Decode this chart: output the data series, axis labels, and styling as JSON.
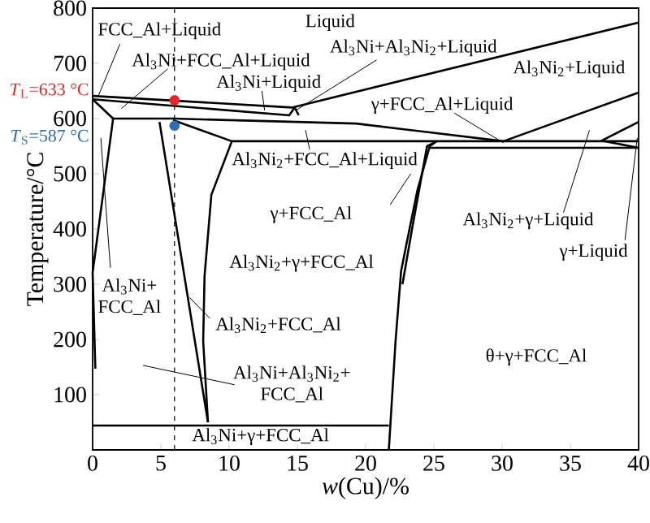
{
  "chart_data": {
    "type": "line",
    "xlabel": "*w*(Cu)/%",
    "ylabel": "Temperature/°C",
    "xlim": [
      0,
      40
    ],
    "ylim": [
      0,
      800
    ],
    "xticks": [
      0,
      5,
      10,
      15,
      20,
      25,
      30,
      35,
      40
    ],
    "yticks": [
      100,
      200,
      300,
      400,
      500,
      600,
      700,
      800
    ],
    "ref_lines": [
      {
        "axis": "x",
        "value": 6,
        "line_style": "dashed",
        "color": "#000000"
      }
    ],
    "series": [
      {
        "color": "#000000",
        "x": [
          0,
          14.6,
          40
        ],
        "values": [
          641,
          620,
          774
        ]
      },
      {
        "color": "#000000",
        "x": [
          0,
          14.4,
          14.8,
          15.1
        ],
        "values": [
          635,
          606,
          620,
          606
        ]
      },
      {
        "color": "#000000",
        "x": [
          0,
          1.5,
          5.9,
          19.3,
          30.1,
          40
        ],
        "values": [
          635,
          600,
          600,
          591,
          559,
          647
        ]
      },
      {
        "color": "#000000",
        "x": [
          5.9,
          10.2,
          40
        ],
        "values": [
          597,
          559,
          559
        ]
      },
      {
        "color": "#000000",
        "x": [
          24.6,
          40
        ],
        "values": [
          547,
          547
        ]
      },
      {
        "color": "#000000",
        "x": [
          1.5,
          0,
          0.2
        ],
        "values": [
          600,
          321,
          147
        ]
      },
      {
        "color": "#000000",
        "x": [
          4.9,
          8.45
        ],
        "values": [
          594,
          50
        ]
      },
      {
        "color": "#000000",
        "x": [
          10.2,
          8.7,
          8.2,
          8.1,
          8.45
        ],
        "values": [
          559,
          462,
          315,
          197,
          50
        ]
      },
      {
        "color": "#000000",
        "x": [
          0,
          21.7
        ],
        "values": [
          44,
          44
        ]
      },
      {
        "color": "#000000",
        "x": [
          21.7,
          22.2,
          22.6,
          23.0,
          23.8,
          24.7,
          25.2
        ],
        "values": [
          0,
          200,
          324,
          374,
          471,
          550,
          559
        ]
      },
      {
        "color": "#000000",
        "x": [
          22.7,
          23.4,
          24.5,
          25.0
        ],
        "values": [
          300,
          400,
          550,
          556
        ]
      },
      {
        "color": "#000000",
        "x": [
          40,
          37.3,
          40
        ],
        "values": [
          547,
          560,
          594
        ]
      },
      {
        "type": "scatter",
        "name": "*T*$_{L}$=633 °C",
        "color": "#e8262a",
        "x": [
          6
        ],
        "values": [
          633
        ]
      },
      {
        "type": "scatter",
        "name": "*T*$_{S}$=587 °C",
        "color": "#2e6db4",
        "x": [
          6
        ],
        "values": [
          587
        ]
      }
    ],
    "annotations": [
      {
        "text": "FCC_Al+Liquid",
        "x": 0.4,
        "y": 640
      },
      {
        "text": "Al$_{3}$Ni+FCC_Al+Liquid",
        "x": 2.1,
        "y": 618
      },
      {
        "text": "Al$_{3}$Ni+Liquid",
        "x": 12.6,
        "y": 615
      },
      "Liquid",
      {
        "text": "Al$_{3}$Ni+Al$_{3}$Ni$_{2}$+Liquid",
        "x": 14.9,
        "y": 615
      },
      "Al$_{3}$Ni$_{2}$+Liquid",
      {
        "text": "γ+FCC_Al+Liquid",
        "x": 30.1,
        "y": 556
      },
      {
        "text": "Al$_{3}$Ni$_{2}$+FCC_Al+Liquid",
        "x": 15.6,
        "y": 579
      },
      "γ+FCC_Al",
      "Al$_{3}$Ni$_{2}$+γ+FCC_Al",
      "Al$_{3}$Ni$_{2}$+γ+Liquid",
      {
        "text": "γ+Liquid",
        "x": 39.9,
        "y": 565
      },
      "Al$_{3}$Ni+",
      "FCC_Al",
      {
        "text": "Al$_{3}$Ni$_{2}$+FCC_Al",
        "x": 7.1,
        "y": 276
      },
      "Al$_{3}$Ni+Al$_{3}$Ni$_{2}$+",
      "FCC_Al",
      "Al$_{3}$Ni+γ+FCC_Al",
      "θ+γ+FCC_Al"
    ]
  }
}
